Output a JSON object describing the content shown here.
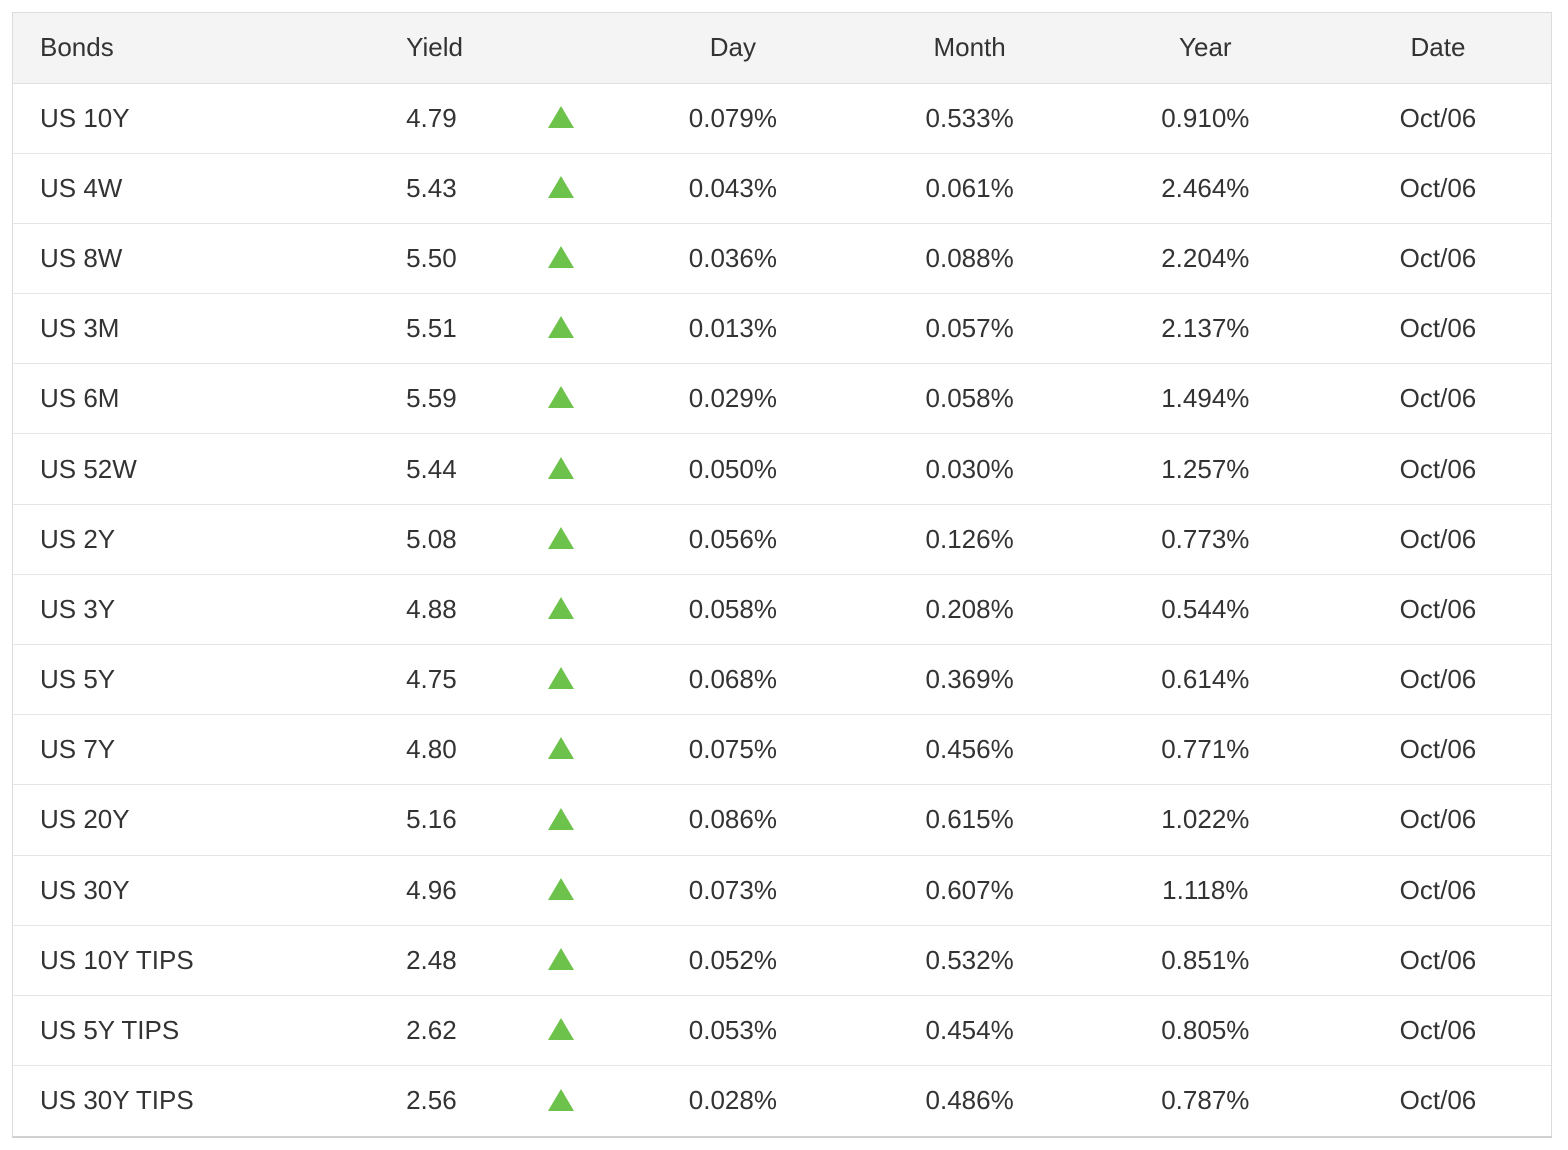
{
  "table": {
    "headers": {
      "bonds": "Bonds",
      "yield": "Yield",
      "trend": "",
      "day": "Day",
      "month": "Month",
      "year": "Year",
      "date": "Date"
    },
    "arrow_color": "#6cc24a",
    "rows": [
      {
        "bond": "US 10Y",
        "yield": "4.79",
        "trend": "up-arrow-icon",
        "day": "0.079%",
        "month": "0.533%",
        "year": "0.910%",
        "date": "Oct/06"
      },
      {
        "bond": "US 4W",
        "yield": "5.43",
        "trend": "up-arrow-icon",
        "day": "0.043%",
        "month": "0.061%",
        "year": "2.464%",
        "date": "Oct/06"
      },
      {
        "bond": "US 8W",
        "yield": "5.50",
        "trend": "up-arrow-icon",
        "day": "0.036%",
        "month": "0.088%",
        "year": "2.204%",
        "date": "Oct/06"
      },
      {
        "bond": "US 3M",
        "yield": "5.51",
        "trend": "up-arrow-icon",
        "day": "0.013%",
        "month": "0.057%",
        "year": "2.137%",
        "date": "Oct/06"
      },
      {
        "bond": "US 6M",
        "yield": "5.59",
        "trend": "up-arrow-icon",
        "day": "0.029%",
        "month": "0.058%",
        "year": "1.494%",
        "date": "Oct/06"
      },
      {
        "bond": "US 52W",
        "yield": "5.44",
        "trend": "up-arrow-icon",
        "day": "0.050%",
        "month": "0.030%",
        "year": "1.257%",
        "date": "Oct/06"
      },
      {
        "bond": "US 2Y",
        "yield": "5.08",
        "trend": "up-arrow-icon",
        "day": "0.056%",
        "month": "0.126%",
        "year": "0.773%",
        "date": "Oct/06"
      },
      {
        "bond": "US 3Y",
        "yield": "4.88",
        "trend": "up-arrow-icon",
        "day": "0.058%",
        "month": "0.208%",
        "year": "0.544%",
        "date": "Oct/06"
      },
      {
        "bond": "US 5Y",
        "yield": "4.75",
        "trend": "up-arrow-icon",
        "day": "0.068%",
        "month": "0.369%",
        "year": "0.614%",
        "date": "Oct/06"
      },
      {
        "bond": "US 7Y",
        "yield": "4.80",
        "trend": "up-arrow-icon",
        "day": "0.075%",
        "month": "0.456%",
        "year": "0.771%",
        "date": "Oct/06"
      },
      {
        "bond": "US 20Y",
        "yield": "5.16",
        "trend": "up-arrow-icon",
        "day": "0.086%",
        "month": "0.615%",
        "year": "1.022%",
        "date": "Oct/06"
      },
      {
        "bond": "US 30Y",
        "yield": "4.96",
        "trend": "up-arrow-icon",
        "day": "0.073%",
        "month": "0.607%",
        "year": "1.118%",
        "date": "Oct/06"
      },
      {
        "bond": "US 10Y TIPS",
        "yield": "2.48",
        "trend": "up-arrow-icon",
        "day": "0.052%",
        "month": "0.532%",
        "year": "0.851%",
        "date": "Oct/06"
      },
      {
        "bond": "US 5Y TIPS",
        "yield": "2.62",
        "trend": "up-arrow-icon",
        "day": "0.053%",
        "month": "0.454%",
        "year": "0.805%",
        "date": "Oct/06"
      },
      {
        "bond": "US 30Y TIPS",
        "yield": "2.56",
        "trend": "up-arrow-icon",
        "day": "0.028%",
        "month": "0.486%",
        "year": "0.787%",
        "date": "Oct/06"
      }
    ]
  }
}
